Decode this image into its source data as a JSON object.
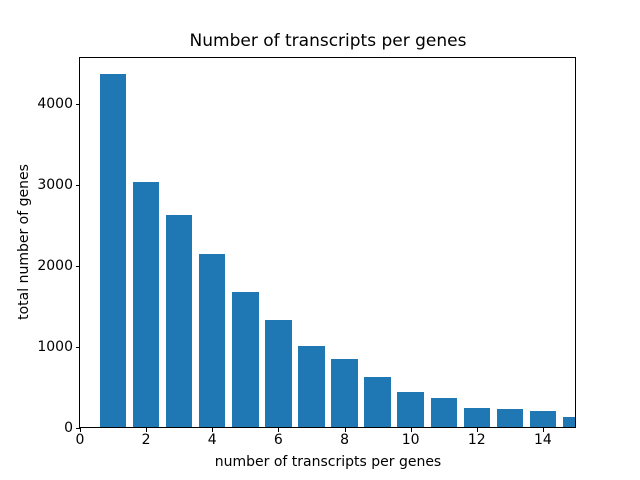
{
  "chart_data": {
    "type": "bar",
    "title": "Number of transcripts per genes",
    "xlabel": "number of transcripts per genes",
    "ylabel": "total number of genes",
    "categories": [
      1,
      2,
      3,
      4,
      5,
      6,
      7,
      8,
      9,
      10,
      11,
      12,
      13,
      14,
      15
    ],
    "values": [
      4375,
      3045,
      2630,
      2150,
      1680,
      1330,
      1005,
      845,
      630,
      440,
      360,
      240,
      225,
      205,
      135
    ],
    "bar_color": "#1f77b4",
    "bar_width": 0.8,
    "xlim": [
      0,
      15
    ],
    "ylim": [
      0,
      4575
    ],
    "xticks": [
      0,
      2,
      4,
      6,
      8,
      10,
      12,
      14
    ],
    "yticks": [
      0,
      1000,
      2000,
      3000,
      4000
    ],
    "grid": false,
    "legend_position": "none",
    "background_color": "#ffffff",
    "text_color": "#000000",
    "spine_color": "#000000"
  }
}
